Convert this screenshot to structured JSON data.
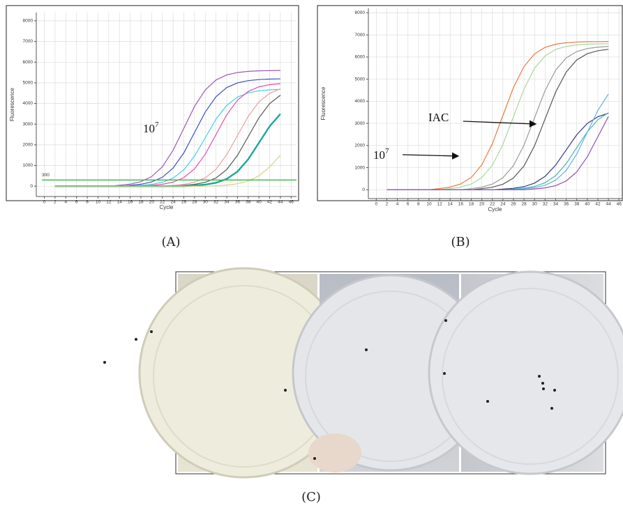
{
  "chart_data": [
    {
      "type": "line",
      "x_label": "Cycle",
      "y_label": "Fluorescence",
      "x": [
        2,
        4,
        6,
        8,
        10,
        12,
        14,
        16,
        18,
        20,
        22,
        24,
        26,
        28,
        30,
        32,
        34,
        36,
        38,
        40,
        42,
        44
      ],
      "xlim": [
        -1.5,
        47
      ],
      "xticks": [
        0,
        2,
        4,
        6,
        8,
        10,
        12,
        14,
        16,
        18,
        20,
        22,
        24,
        26,
        28,
        30,
        32,
        34,
        36,
        38,
        40,
        42,
        44,
        46
      ],
      "ylim": [
        -500,
        8400
      ],
      "yticks": [
        0,
        1000,
        2000,
        3000,
        4000,
        5000,
        6000,
        7000,
        8000
      ],
      "grid": true,
      "threshold": 300,
      "threshold_color": "#3cb44b",
      "annotations": [
        {
          "text": "10",
          "sup": "7"
        }
      ],
      "series": [
        {
          "color": "#9b59b6",
          "values": [
            0,
            0,
            0,
            0,
            0,
            0,
            45,
            101,
            218,
            465,
            941,
            1736,
            2800,
            3864,
            4659,
            5135,
            5382,
            5499,
            5555,
            5580,
            5590,
            5600
          ]
        },
        {
          "color": "#3b4fc4",
          "values": [
            0,
            0,
            0,
            0,
            0,
            0,
            0,
            42,
            94,
            203,
            432,
            874,
            1612,
            2600,
            3588,
            4326,
            4768,
            4997,
            5106,
            5158,
            5180,
            5190
          ]
        },
        {
          "color": "#3fd0e0",
          "values": [
            0,
            0,
            0,
            0,
            0,
            0,
            0,
            0,
            38,
            85,
            183,
            390,
            790,
            1457,
            2350,
            3243,
            3910,
            4310,
            4517,
            4615,
            4662,
            4680
          ]
        },
        {
          "color": "#e04fb0",
          "values": [
            0,
            0,
            0,
            0,
            0,
            0,
            0,
            0,
            0,
            40,
            90,
            195,
            415,
            840,
            1550,
            2500,
            3450,
            4160,
            4585,
            4805,
            4910,
            4960
          ]
        },
        {
          "color": "#e8a0a0",
          "values": [
            0,
            0,
            0,
            0,
            0,
            0,
            0,
            0,
            0,
            0,
            0,
            39,
            88,
            191,
            407,
            823,
            1519,
            2450,
            3381,
            4077,
            4493,
            4709
          ]
        },
        {
          "color": "#555555",
          "values": [
            0,
            0,
            0,
            0,
            0,
            0,
            0,
            0,
            0,
            0,
            0,
            0,
            38,
            86,
            187,
            398,
            806,
            1488,
            2400,
            3312,
            3994,
            4402
          ]
        },
        {
          "color": "#1aa899",
          "values": [
            0,
            0,
            0,
            0,
            0,
            0,
            0,
            0,
            0,
            0,
            0,
            0,
            0,
            34,
            76,
            164,
            349,
            706,
            1302,
            2100,
            2898,
            3494
          ]
        },
        {
          "color": "#d9d07a",
          "values": [
            0,
            0,
            0,
            0,
            0,
            0,
            0,
            0,
            0,
            0,
            0,
            0,
            0,
            0,
            0,
            24,
            54,
            117,
            249,
            504,
            930,
            1500
          ]
        }
      ]
    },
    {
      "type": "line",
      "x_label": "Cycle",
      "y_label": "Fluorescence",
      "x": [
        2,
        4,
        6,
        8,
        10,
        12,
        14,
        16,
        18,
        20,
        22,
        24,
        26,
        28,
        30,
        32,
        34,
        36,
        38,
        40,
        42,
        44
      ],
      "xlim": [
        -1.5,
        46.5
      ],
      "xticks": [
        0,
        2,
        4,
        6,
        8,
        10,
        12,
        14,
        16,
        18,
        20,
        22,
        24,
        26,
        28,
        30,
        32,
        34,
        36,
        38,
        40,
        42,
        44,
        46
      ],
      "ylim": [
        -400,
        8200
      ],
      "yticks": [
        0,
        1000,
        2000,
        3000,
        4000,
        5000,
        6000,
        7000,
        8000
      ],
      "grid": true,
      "annotations": [
        {
          "text": "IAC"
        },
        {
          "text": "10",
          "sup": "7"
        }
      ],
      "series": [
        {
          "color": "#e8783a",
          "values": [
            0,
            0,
            0,
            0,
            0,
            54,
            121,
            261,
            556,
            1126,
            2077,
            3350,
            4623,
            5574,
            6144,
            6439,
            6579,
            6646,
            6680,
            6690,
            6695,
            6700
          ]
        },
        {
          "color": "#a8d8a0",
          "values": [
            0,
            0,
            0,
            0,
            0,
            0,
            53,
            119,
            257,
            548,
            1109,
            2046,
            3300,
            4554,
            5491,
            6052,
            6343,
            6481,
            6547,
            6580,
            6590,
            6600
          ]
        },
        {
          "color": "#9a9a9a",
          "values": [
            0,
            0,
            0,
            0,
            0,
            0,
            0,
            0,
            52,
            117,
            254,
            540,
            1092,
            2015,
            3250,
            4485,
            5408,
            5961,
            6247,
            6383,
            6448,
            6480
          ]
        },
        {
          "color": "#555555",
          "values": [
            0,
            0,
            0,
            0,
            0,
            0,
            0,
            0,
            0,
            51,
            115,
            250,
            531,
            1075,
            1984,
            3200,
            4416,
            5325,
            5869,
            6150,
            6285,
            6349
          ]
        },
        {
          "color": "#2e3a8c",
          "values": [
            0,
            0,
            0,
            0,
            0,
            0,
            0,
            0,
            0,
            0,
            0,
            29,
            65,
            140,
            299,
            605,
            1116,
            1800,
            2484,
            2995,
            3301,
            3460
          ]
        },
        {
          "color": "#3fb8b0",
          "values": [
            0,
            0,
            0,
            0,
            0,
            0,
            0,
            0,
            0,
            0,
            0,
            0,
            30,
            68,
            148,
            315,
            638,
            1178,
            1900,
            2622,
            3162,
            3485
          ]
        },
        {
          "color": "#6ab0e0",
          "values": [
            0,
            0,
            0,
            0,
            0,
            0,
            0,
            0,
            0,
            0,
            0,
            0,
            0,
            42,
            94,
            203,
            432,
            874,
            1612,
            2600,
            3588,
            4326
          ]
        },
        {
          "color": "#9050b0",
          "values": [
            0,
            0,
            0,
            0,
            0,
            0,
            0,
            0,
            0,
            0,
            0,
            0,
            0,
            0,
            38,
            86,
            187,
            398,
            806,
            1488,
            2400,
            3312
          ]
        }
      ]
    }
  ],
  "panel_labels": [
    "(A)",
    "(B)",
    "(C)"
  ]
}
